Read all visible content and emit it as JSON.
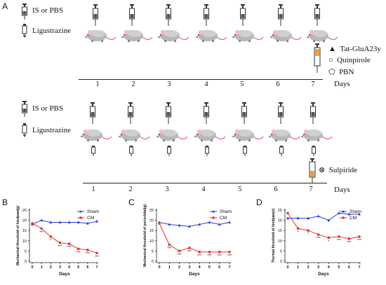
{
  "panel_labels": {
    "A": "A",
    "B": "B",
    "C": "C",
    "D": "D"
  },
  "top": {
    "legend_is": "IS or PBS",
    "legend_lig": "Ligustrazine",
    "drug_legend": [
      {
        "symbol": "▲",
        "text": "Tat-GluA23y"
      },
      {
        "symbol": "○",
        "text": "Quinpirole"
      },
      {
        "symbol": "⬠",
        "text": "PBN"
      }
    ],
    "days": [
      "1",
      "2",
      "3",
      "4",
      "5",
      "6",
      "7"
    ],
    "days_label": "Days"
  },
  "bottom": {
    "legend_is": "IS or PBS",
    "legend_lig": "Ligustrazine",
    "drug_legend": [
      {
        "symbol": "⊗",
        "text": "Sulpiride"
      }
    ],
    "days": [
      "1",
      "2",
      "3",
      "4",
      "5",
      "6",
      "7"
    ],
    "days_label": "Days"
  },
  "colors": {
    "sham": "#1f3bd6",
    "cm": "#e8322c",
    "ear": "#ffb8b8",
    "tail": "#e07070",
    "syringe_tip": "#f0a030"
  },
  "icons": {
    "syringe": "syringe-icon",
    "dropper": "dropper-icon",
    "rat": "rat-icon"
  },
  "chart_data": [
    {
      "type": "line",
      "panel": "B",
      "ylabel": "Mechanical threshold of hindpaw(g)",
      "xlabel": "Days",
      "x": [
        0,
        1,
        2,
        3,
        4,
        5,
        6,
        7
      ],
      "ylim": [
        0,
        25
      ],
      "yticks": [
        "0",
        "5",
        "10",
        "15",
        "20",
        "25"
      ],
      "series": [
        {
          "name": "Sham",
          "values": [
            18,
            20,
            19,
            19,
            19,
            19,
            18.5,
            19.5
          ]
        },
        {
          "name": "CM",
          "values": [
            18.5,
            16,
            12,
            9,
            8.5,
            6,
            5.5,
            4
          ]
        }
      ],
      "sig": [
        "",
        "***",
        "*",
        "***",
        "***",
        "***",
        "***",
        "***"
      ],
      "legend": "top-right"
    },
    {
      "type": "line",
      "panel": "C",
      "ylabel": "Mechanical threshold of periorbital(g)",
      "xlabel": "Days",
      "x": [
        0,
        1,
        2,
        3,
        4,
        5,
        6,
        7
      ],
      "ylim": [
        0,
        25
      ],
      "yticks": [
        "0",
        "5",
        "10",
        "15",
        "20",
        "25"
      ],
      "series": [
        {
          "name": "Sham",
          "values": [
            19,
            18,
            17.5,
            17,
            18,
            19,
            18,
            19
          ]
        },
        {
          "name": "CM",
          "values": [
            18.5,
            8,
            5,
            6.5,
            4.5,
            4.5,
            4.5,
            4.5
          ]
        }
      ],
      "sig": [
        "",
        "***",
        "***",
        "***",
        "***",
        "***",
        "***",
        "***"
      ],
      "legend": "top-right"
    },
    {
      "type": "line",
      "panel": "D",
      "ylabel": "Thermal threshold of hindpaw(s)",
      "xlabel": "Days",
      "x": [
        0,
        1,
        2,
        3,
        4,
        5,
        6,
        7
      ],
      "ylim": [
        0,
        25
      ],
      "yticks": [
        "0",
        "5",
        "10",
        "15",
        "20",
        "25"
      ],
      "series": [
        {
          "name": "Sham",
          "values": [
            21,
            21,
            21,
            22,
            20,
            23.5,
            23,
            23
          ]
        },
        {
          "name": "CM",
          "values": [
            23.5,
            16,
            15,
            13,
            11.5,
            12,
            11,
            12
          ]
        }
      ],
      "sig": [
        "",
        "*",
        "*",
        "***",
        "*",
        "***",
        "***",
        "***"
      ],
      "legend": "top-right"
    }
  ]
}
